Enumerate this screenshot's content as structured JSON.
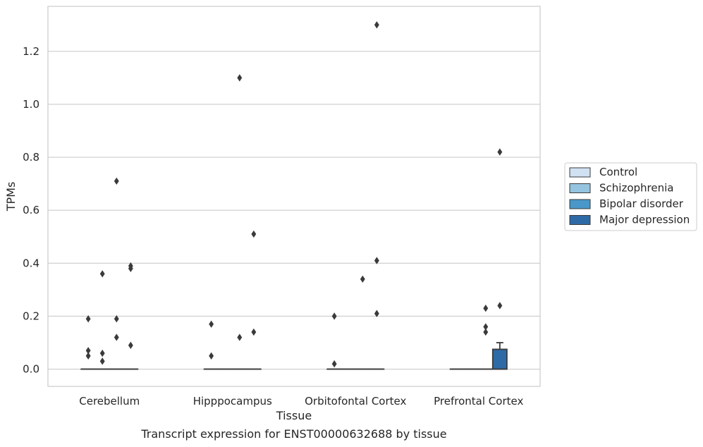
{
  "chart_data": {
    "type": "box",
    "xlabel": "Tissue",
    "ylabel": "TPMs",
    "caption": "Transcript expression for ENST00000632688 by tissue",
    "categories": [
      "Cerebellum",
      "Hipppocampus",
      "Orbitofontal Cortex",
      "Prefrontal Cortex"
    ],
    "ylim": [
      -0.065,
      1.37
    ],
    "yticks": [
      0.0,
      0.2,
      0.4,
      0.6,
      0.8,
      1.0,
      1.2
    ],
    "ytick_labels": [
      "0.0",
      "0.2",
      "0.4",
      "0.6",
      "0.8",
      "1.0",
      "1.2"
    ],
    "grid": "horizontal",
    "legend_position": "right",
    "series": [
      {
        "name": "Control",
        "color": "#d0e1f2",
        "boxes": [
          {
            "q1": 0,
            "median": 0,
            "q3": 0,
            "whisker_low": 0,
            "whisker_high": 0,
            "outliers": [
              0.07,
              0.05,
              0.19
            ]
          },
          {
            "q1": 0,
            "median": 0,
            "q3": 0,
            "whisker_low": 0,
            "whisker_high": 0,
            "outliers": [
              0.17,
              0.05
            ]
          },
          {
            "q1": 0,
            "median": 0,
            "q3": 0,
            "whisker_low": 0,
            "whisker_high": 0,
            "outliers": [
              0.2,
              0.02
            ]
          },
          {
            "q1": 0,
            "median": 0,
            "q3": 0,
            "whisker_low": 0,
            "whisker_high": 0,
            "outliers": []
          }
        ]
      },
      {
        "name": "Schizophrenia",
        "color": "#94c4df",
        "boxes": [
          {
            "q1": 0,
            "median": 0,
            "q3": 0,
            "whisker_low": 0,
            "whisker_high": 0,
            "outliers": [
              0.36,
              0.06,
              0.03
            ]
          },
          {
            "q1": 0,
            "median": 0,
            "q3": 0,
            "whisker_low": 0,
            "whisker_high": 0,
            "outliers": []
          },
          {
            "q1": 0,
            "median": 0,
            "q3": 0,
            "whisker_low": 0,
            "whisker_high": 0,
            "outliers": []
          },
          {
            "q1": 0,
            "median": 0,
            "q3": 0,
            "whisker_low": 0,
            "whisker_high": 0,
            "outliers": []
          }
        ]
      },
      {
        "name": "Bipolar disorder",
        "color": "#4a98c9",
        "boxes": [
          {
            "q1": 0,
            "median": 0,
            "q3": 0,
            "whisker_low": 0,
            "whisker_high": 0,
            "outliers": [
              0.71,
              0.19,
              0.12
            ]
          },
          {
            "q1": 0,
            "median": 0,
            "q3": 0,
            "whisker_low": 0,
            "whisker_high": 0,
            "outliers": [
              1.1,
              0.12
            ]
          },
          {
            "q1": 0,
            "median": 0,
            "q3": 0,
            "whisker_low": 0,
            "whisker_high": 0,
            "outliers": [
              0.34
            ]
          },
          {
            "q1": 0,
            "median": 0,
            "q3": 0,
            "whisker_low": 0,
            "whisker_high": 0,
            "outliers": [
              0.23,
              0.16,
              0.14
            ]
          }
        ]
      },
      {
        "name": "Major depression",
        "color": "#2e6aa6",
        "boxes": [
          {
            "q1": 0,
            "median": 0,
            "q3": 0,
            "whisker_low": 0,
            "whisker_high": 0,
            "outliers": [
              0.39,
              0.38,
              0.09
            ]
          },
          {
            "q1": 0,
            "median": 0,
            "q3": 0,
            "whisker_low": 0,
            "whisker_high": 0,
            "outliers": [
              0.51,
              0.14
            ]
          },
          {
            "q1": 0,
            "median": 0,
            "q3": 0,
            "whisker_low": 0,
            "whisker_high": 0,
            "outliers": [
              1.3,
              0.41,
              0.21
            ]
          },
          {
            "q1": 0,
            "median": 0,
            "q3": 0.075,
            "whisker_low": 0,
            "whisker_high": 0.1,
            "outliers": [
              0.82,
              0.24
            ]
          }
        ]
      }
    ]
  }
}
